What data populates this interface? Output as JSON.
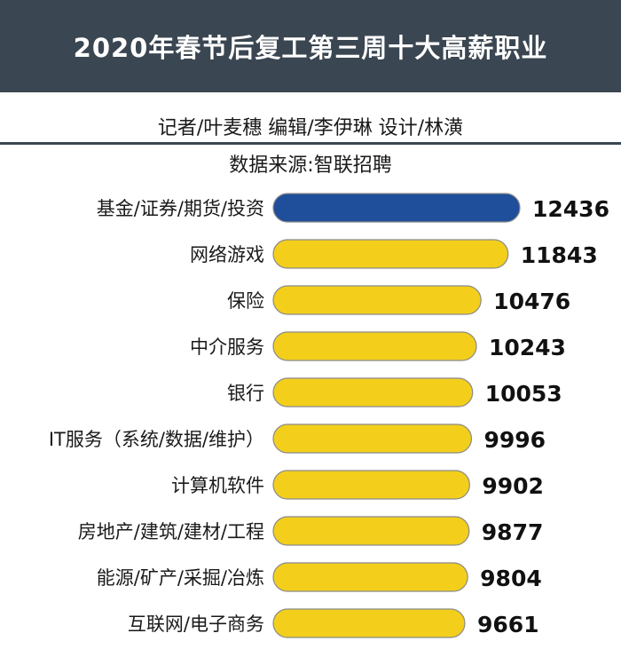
{
  "header": {
    "title": "2020年春节后复工第三周十大高薪职业",
    "credits": "记者/叶麦穗  编辑/李伊琳  设计/林潢",
    "source": "数据来源:智联招聘"
  },
  "colors": {
    "header_bg": "#3a4651",
    "highlight_bar": "#1f4e9a",
    "bar": "#f3cf1c",
    "bar_outline": "#8a8a8a"
  },
  "chart_data": {
    "type": "bar",
    "orientation": "horizontal",
    "title": "2020年春节后复工第三周十大高薪职业",
    "categories": [
      "基金/证券/期货/投资",
      "网络游戏",
      "保险",
      "中介服务",
      "银行",
      "IT服务（系统/数据/维护）",
      "计算机软件",
      "房地产/建筑/建材/工程",
      "能源/矿产/采掘/冶炼",
      "互联网/电子商务"
    ],
    "values": [
      12436,
      11843,
      10476,
      10243,
      10053,
      9996,
      9902,
      9877,
      9804,
      9661
    ],
    "highlight_index": 0,
    "data_labels": true,
    "grid": false,
    "legend": "none"
  }
}
